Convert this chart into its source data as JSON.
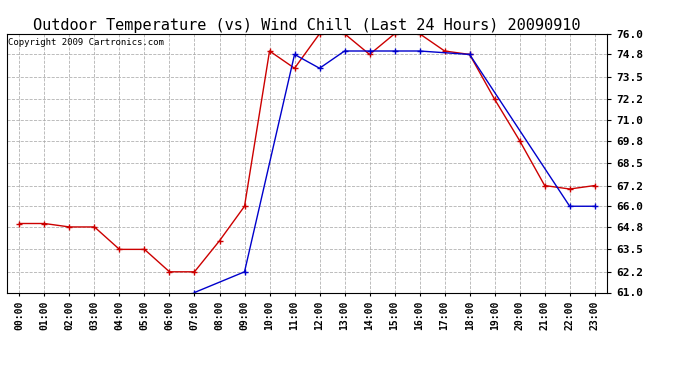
{
  "title": "Outdoor Temperature (vs) Wind Chill (Last 24 Hours) 20090910",
  "copyright": "Copyright 2009 Cartronics.com",
  "x_labels": [
    "00:00",
    "01:00",
    "02:00",
    "03:00",
    "04:00",
    "05:00",
    "06:00",
    "07:00",
    "08:00",
    "09:00",
    "10:00",
    "11:00",
    "12:00",
    "13:00",
    "14:00",
    "15:00",
    "16:00",
    "17:00",
    "18:00",
    "19:00",
    "20:00",
    "21:00",
    "22:00",
    "23:00"
  ],
  "temp_data": [
    65.0,
    65.0,
    64.8,
    64.8,
    63.5,
    63.5,
    62.2,
    62.2,
    64.0,
    66.0,
    75.0,
    74.0,
    76.0,
    76.0,
    74.8,
    76.0,
    76.0,
    75.0,
    74.8,
    72.2,
    69.8,
    67.2,
    67.0,
    67.2
  ],
  "windchill_data": [
    null,
    null,
    null,
    null,
    null,
    null,
    null,
    61.0,
    null,
    62.2,
    null,
    74.8,
    74.0,
    75.0,
    75.0,
    75.0,
    75.0,
    null,
    74.8,
    null,
    null,
    null,
    66.0,
    66.0
  ],
  "ylim": [
    61.0,
    76.0
  ],
  "yticks": [
    61.0,
    62.2,
    63.5,
    64.8,
    66.0,
    67.2,
    68.5,
    69.8,
    71.0,
    72.2,
    73.5,
    74.8,
    76.0
  ],
  "temp_color": "#cc0000",
  "windchill_color": "#0000cc",
  "grid_color": "#aaaaaa",
  "bg_color": "#ffffff",
  "title_fontsize": 11,
  "copyright_fontsize": 6.5,
  "tick_fontsize": 8,
  "xlabel_fontsize": 7
}
